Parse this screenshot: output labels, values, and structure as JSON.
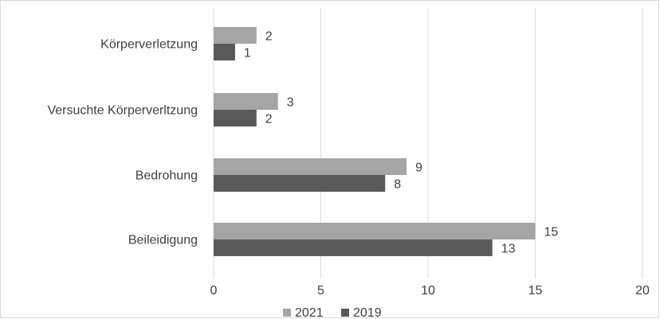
{
  "chart_data": {
    "type": "bar",
    "orientation": "horizontal",
    "categories": [
      "Körperverletzung",
      "Versuchte Körperverltzung",
      "Bedrohung",
      "Beileidigung"
    ],
    "series": [
      {
        "name": "2021",
        "values": [
          2,
          3,
          9,
          15
        ],
        "color": "#a5a5a5"
      },
      {
        "name": "2019",
        "values": [
          1,
          2,
          8,
          13
        ],
        "color": "#595959"
      }
    ],
    "xlim": [
      0,
      20
    ],
    "xticks": [
      0,
      5,
      10,
      15,
      20
    ],
    "grid": true,
    "legend_position": "bottom",
    "data_labels": true
  }
}
